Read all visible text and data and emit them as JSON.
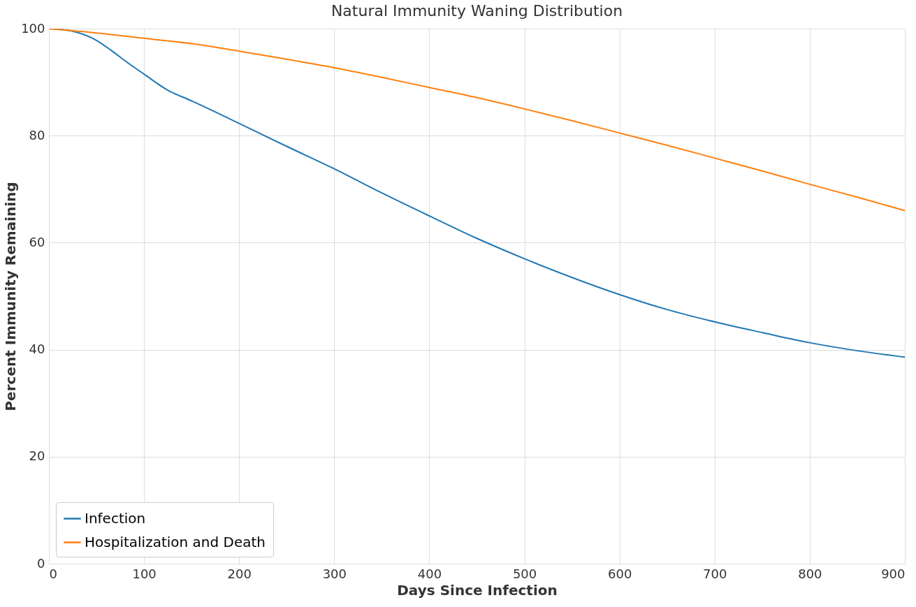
{
  "chart_data": {
    "type": "line",
    "title": "Natural Immunity Waning Distribution",
    "xlabel": "Days Since Infection",
    "ylabel": "Percent Immunity Remaining",
    "x": [
      0,
      25,
      50,
      65,
      80,
      100,
      125,
      150,
      200,
      250,
      300,
      350,
      400,
      450,
      500,
      550,
      600,
      650,
      700,
      750,
      800,
      850,
      900
    ],
    "series": [
      {
        "name": "Infection",
        "color": "#1f77b4",
        "values": [
          100,
          99.5,
          97.8,
          96,
          94,
          91.5,
          88.5,
          86.5,
          82.3,
          78,
          73.8,
          69.3,
          65,
          60.8,
          57,
          53.5,
          50.3,
          47.5,
          45.2,
          43.2,
          41.3,
          39.8,
          38.6
        ]
      },
      {
        "name": "Hospitalization and Death",
        "color": "#ff7f0e",
        "values": [
          100,
          99.6,
          99.2,
          98.9,
          98.6,
          98.2,
          97.7,
          97.2,
          95.8,
          94.3,
          92.7,
          90.9,
          89,
          87.1,
          85,
          82.8,
          80.5,
          78.2,
          75.8,
          73.4,
          70.9,
          68.5,
          66
        ]
      }
    ],
    "xlim": [
      0,
      900
    ],
    "xticks": [
      0,
      100,
      200,
      300,
      400,
      500,
      600,
      700,
      800,
      900
    ],
    "ylim": [
      0,
      100
    ],
    "yticks": [
      0,
      20,
      40,
      60,
      80,
      100
    ],
    "grid": true,
    "legend": "bottom left",
    "line_style": "solid"
  }
}
